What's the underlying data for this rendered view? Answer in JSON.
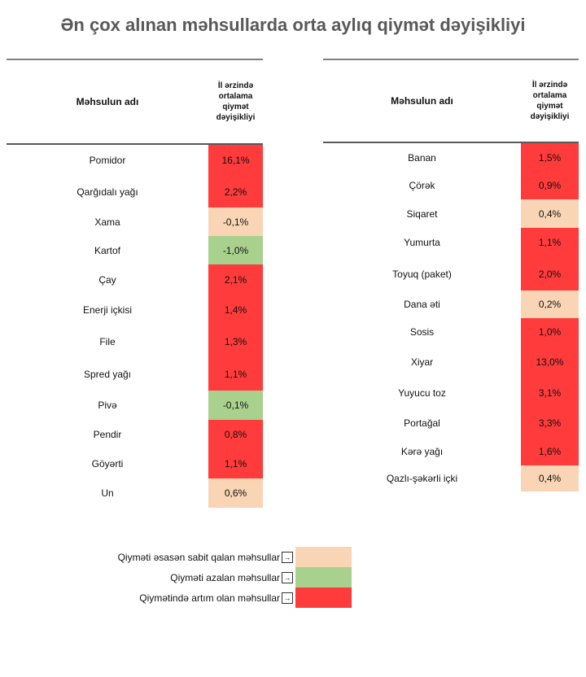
{
  "title": "Ən çox alınan məhsullarda orta aylıq qiymət dəyişikliyi",
  "colors": {
    "increase": "#FF3B3B",
    "stable": "#F9D5B5",
    "decrease": "#A9D18E"
  },
  "chart_data": {
    "type": "table",
    "title": "Ən çox alınan məhsullarda orta aylıq qiymət dəyişikliyi",
    "columns": [
      "Məhsulun adı",
      "İl ərzində ortalama qiymət dəyişikliyi"
    ],
    "tables": [
      {
        "rows": [
          {
            "name": "Pomidor",
            "value": "16,1%",
            "category": "increase"
          },
          {
            "name": "Qarğıdalı yağı",
            "value": "2,2%",
            "category": "increase"
          },
          {
            "name": "Xama",
            "value": "-0,1%",
            "category": "stable"
          },
          {
            "name": "Kartof",
            "value": "-1,0%",
            "category": "decrease"
          },
          {
            "name": "Çay",
            "value": "2,1%",
            "category": "increase"
          },
          {
            "name": "Enerji içkisi",
            "value": "1,4%",
            "category": "increase"
          },
          {
            "name": "File",
            "value": "1,3%",
            "category": "increase"
          },
          {
            "name": "Spred yağı",
            "value": "1,1%",
            "category": "increase"
          },
          {
            "name": "Pivə",
            "value": "-0,1%",
            "category": "decrease"
          },
          {
            "name": "Pendir",
            "value": "0,8%",
            "category": "increase"
          },
          {
            "name": "Göyərti",
            "value": "1,1%",
            "category": "increase"
          },
          {
            "name": "Un",
            "value": "0,6%",
            "category": "stable"
          }
        ]
      },
      {
        "rows": [
          {
            "name": "Banan",
            "value": "1,5%",
            "category": "increase"
          },
          {
            "name": "Çörək",
            "value": "0,9%",
            "category": "increase"
          },
          {
            "name": "Siqaret",
            "value": "0,4%",
            "category": "stable"
          },
          {
            "name": "Yumurta",
            "value": "1,1%",
            "category": "increase"
          },
          {
            "name": "Toyuq (paket)",
            "value": "2,0%",
            "category": "increase"
          },
          {
            "name": "Dana əti",
            "value": "0,2%",
            "category": "stable"
          },
          {
            "name": "Sosis",
            "value": "1,0%",
            "category": "increase"
          },
          {
            "name": "Xiyar",
            "value": "13,0%",
            "category": "increase"
          },
          {
            "name": "Yuyucu toz",
            "value": "3,1%",
            "category": "increase"
          },
          {
            "name": "Portağal",
            "value": "3,3%",
            "category": "increase"
          },
          {
            "name": "Kərə yağı",
            "value": "1,6%",
            "category": "increase"
          },
          {
            "name": "Qazlı-şəkərli içki",
            "value": "0,4%",
            "category": "stable"
          }
        ]
      }
    ],
    "header": {
      "name": "Məhsulun adı",
      "value_lines": [
        "İl ərzində",
        "ortalama",
        "qiymət",
        "dəyişikliyi"
      ]
    },
    "legend": [
      {
        "label": "Qiyməti əsasən sabit qalan məhsullar",
        "category": "stable"
      },
      {
        "label": "Qiyməti azalan məhsullar",
        "category": "decrease"
      },
      {
        "label": "Qiymətində artım olan məhsullar",
        "category": "increase"
      }
    ],
    "legend_arrow": "→"
  }
}
